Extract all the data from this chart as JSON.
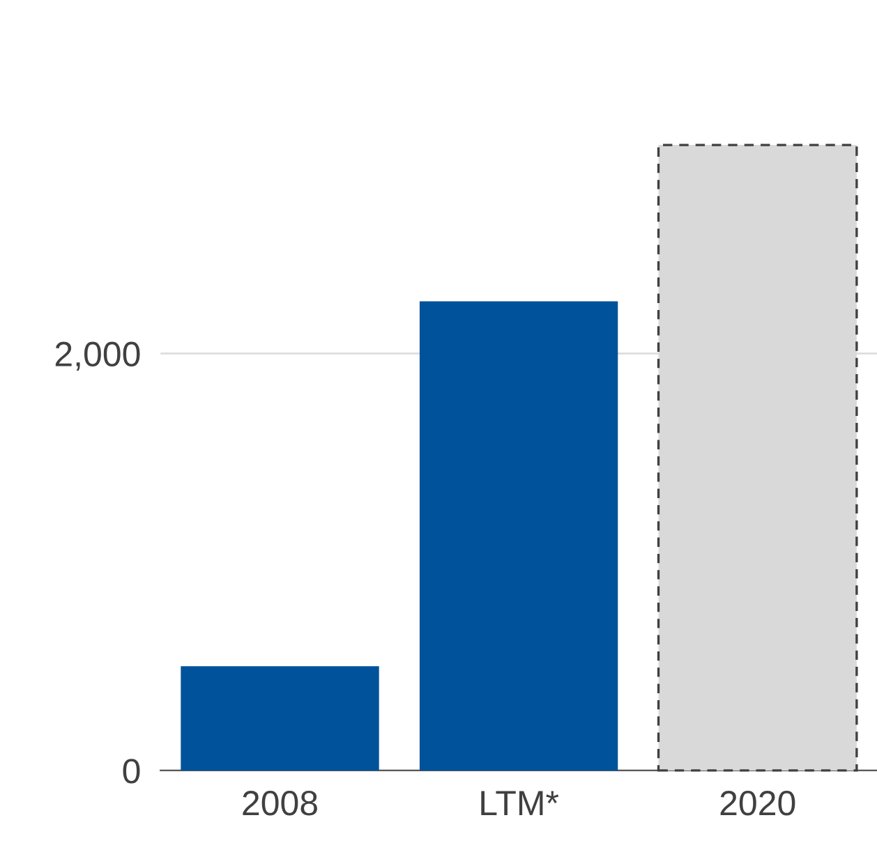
{
  "chart_data": {
    "type": "bar",
    "categories": [
      "2008",
      "LTM*",
      "2020"
    ],
    "series": [
      {
        "color": "#00529b",
        "values": [
          500,
          2250,
          null
        ]
      },
      {
        "color": "#d9d9d9",
        "values": [
          null,
          null,
          3000
        ],
        "line_style": "dashed"
      }
    ],
    "ylim": [
      0,
      3000
    ],
    "yticks": [
      0,
      {
        "value": 2000,
        "label": "2,000"
      }
    ],
    "grid": "y"
  }
}
